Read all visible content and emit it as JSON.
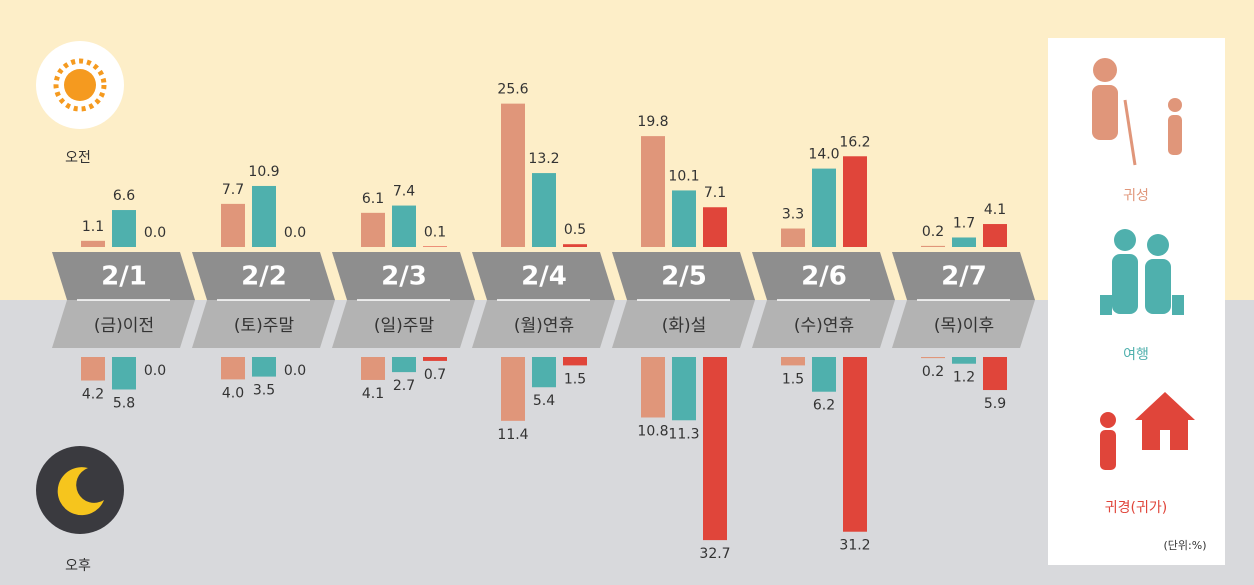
{
  "chart_data": {
    "type": "bar",
    "am_label": "오전",
    "pm_label": "오후",
    "unit": "(단위:%)",
    "categories": [
      "2/1",
      "2/2",
      "2/3",
      "2/4",
      "2/5",
      "2/6",
      "2/7"
    ],
    "day_labels": [
      "(금)이전",
      "(토)주말",
      "(일)주말",
      "(월)연휴",
      "(화)설",
      "(수)연휴",
      "(목)이후"
    ],
    "series": [
      {
        "name": "귀성",
        "color": "#e0967a",
        "am_values": [
          1.1,
          7.7,
          6.1,
          25.6,
          19.8,
          3.3,
          0.2
        ],
        "am_value_labels": [
          "1.1",
          "7.7",
          "6.1",
          "25.6",
          "19.8",
          "3.3",
          "0.2"
        ],
        "pm_values": [
          4.2,
          4.0,
          4.1,
          11.4,
          10.8,
          1.5,
          0.2
        ],
        "pm_value_labels": [
          "4.2",
          "4.0",
          "4.1",
          "11.4",
          "10.8",
          "1.5",
          "0.2"
        ]
      },
      {
        "name": "여행",
        "color": "#4fb0ad",
        "am_values": [
          6.6,
          10.9,
          7.4,
          13.2,
          10.1,
          14.0,
          1.7
        ],
        "am_value_labels": [
          "6.6",
          "10.9",
          "7.4",
          "13.2",
          "10.1",
          "14.0",
          "1.7"
        ],
        "pm_values": [
          5.8,
          3.5,
          2.7,
          5.4,
          11.3,
          6.2,
          1.2
        ],
        "pm_value_labels": [
          "5.8",
          "3.5",
          "2.7",
          "5.4",
          "11.3",
          "6.2",
          "1.2"
        ]
      },
      {
        "name": "귀경(귀가)",
        "color": "#e0453a",
        "am_values": [
          0.0,
          0.0,
          0.1,
          0.5,
          7.1,
          16.2,
          4.1
        ],
        "am_value_labels": [
          "0.0",
          "0.0",
          "0.1",
          "0.5",
          "7.1",
          "16.2",
          "4.1"
        ],
        "pm_values": [
          0.0,
          0.0,
          0.7,
          1.5,
          32.7,
          31.2,
          5.9
        ],
        "pm_value_labels": [
          "0.0",
          "0.0",
          "0.7",
          "1.5",
          "32.7",
          "31.2",
          "5.9"
        ]
      }
    ]
  }
}
